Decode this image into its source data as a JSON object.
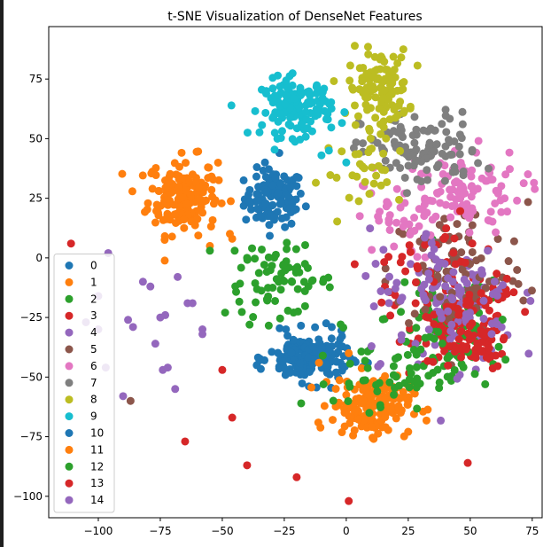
{
  "chart_data": {
    "type": "scatter",
    "title": "t-SNE Visualization of DenseNet Features",
    "xlabel": "",
    "ylabel": "",
    "xlim": [
      -120,
      79
    ],
    "ylim": [
      -109,
      97
    ],
    "xticks": [
      -100,
      -75,
      -50,
      -25,
      0,
      25,
      50,
      75
    ],
    "yticks": [
      75,
      50,
      25,
      0,
      -25,
      -50,
      -75,
      -100
    ],
    "xtick_labels": [
      "−100",
      "−75",
      "−50",
      "−25",
      "0",
      "25",
      "50",
      "75"
    ],
    "ytick_labels": [
      "75",
      "50",
      "25",
      "0",
      "−25",
      "−50",
      "−75",
      "−100"
    ],
    "grid": false,
    "legend_position": "lower-left",
    "series": [
      {
        "name": "0",
        "color": "#1f77b4",
        "clusters": [
          {
            "cx": -29,
            "cy": 25,
            "sx": 6,
            "sy": 6,
            "n": 110
          }
        ],
        "points": [
          [
            -27,
            44
          ],
          [
            -29,
            17
          ]
        ]
      },
      {
        "name": "1",
        "color": "#ff7f0e",
        "clusters": [
          {
            "cx": -66,
            "cy": 26,
            "sx": 7,
            "sy": 8,
            "n": 170
          }
        ],
        "points": [
          [
            -55,
            5
          ],
          [
            -46,
            8
          ]
        ]
      },
      {
        "name": "2",
        "color": "#2ca02c",
        "clusters": [
          {
            "cx": -27,
            "cy": -10,
            "sx": 11,
            "sy": 7,
            "n": 70
          },
          {
            "cx": 40,
            "cy": -25,
            "sx": 12,
            "sy": 10,
            "n": 60
          }
        ],
        "points": [
          [
            -55,
            3
          ],
          [
            -38,
            4
          ],
          [
            -39,
            -28
          ]
        ]
      },
      {
        "name": "3",
        "color": "#d62728",
        "clusters": [
          {
            "cx": 48,
            "cy": -28,
            "sx": 10,
            "sy": 8,
            "n": 90
          }
        ],
        "points": [
          [
            -111,
            6
          ],
          [
            -50,
            -47
          ],
          [
            -46,
            -67
          ],
          [
            -40,
            -87
          ],
          [
            -20,
            -92
          ],
          [
            1,
            -102
          ],
          [
            49,
            -86
          ],
          [
            -65,
            -77
          ]
        ]
      },
      {
        "name": "4",
        "color": "#9467bd",
        "clusters": [
          {
            "cx": 45,
            "cy": -20,
            "sx": 12,
            "sy": 12,
            "n": 70
          }
        ],
        "points": [
          [
            -96,
            2
          ],
          [
            -100,
            -16
          ],
          [
            -105,
            -27
          ],
          [
            -100,
            -30
          ],
          [
            -82,
            -10
          ],
          [
            -79,
            -12
          ],
          [
            -88,
            -26
          ],
          [
            -86,
            -29
          ],
          [
            -75,
            -25
          ],
          [
            -73,
            -24
          ],
          [
            -77,
            -36
          ],
          [
            -74,
            -47
          ],
          [
            -72,
            -46
          ],
          [
            -69,
            -55
          ],
          [
            -90,
            -58
          ],
          [
            -97,
            -46
          ],
          [
            -64,
            -19
          ],
          [
            -62,
            -19
          ],
          [
            -58,
            -30
          ],
          [
            -58,
            -32
          ],
          [
            -68,
            -8
          ]
        ]
      },
      {
        "name": "5",
        "color": "#8c564b",
        "clusters": [
          {
            "cx": 45,
            "cy": -5,
            "sx": 14,
            "sy": 14,
            "n": 90
          }
        ],
        "points": [
          [
            -87,
            -60
          ]
        ]
      },
      {
        "name": "6",
        "color": "#e377c2",
        "clusters": [
          {
            "cx": 45,
            "cy": 28,
            "sx": 13,
            "sy": 9,
            "n": 110
          },
          {
            "cx": 20,
            "cy": 15,
            "sx": 8,
            "sy": 8,
            "n": 30
          }
        ],
        "points": []
      },
      {
        "name": "7",
        "color": "#7f7f7f",
        "clusters": [
          {
            "cx": 30,
            "cy": 45,
            "sx": 12,
            "sy": 8,
            "n": 110
          }
        ],
        "points": []
      },
      {
        "name": "8",
        "color": "#bcbd22",
        "clusters": [
          {
            "cx": 13,
            "cy": 71,
            "sx": 6,
            "sy": 8,
            "n": 120
          },
          {
            "cx": 10,
            "cy": 35,
            "sx": 10,
            "sy": 7,
            "n": 30
          }
        ],
        "points": []
      },
      {
        "name": "9",
        "color": "#17becf",
        "clusters": [
          {
            "cx": -20,
            "cy": 63,
            "sx": 7,
            "sy": 6,
            "n": 140
          }
        ],
        "points": [
          [
            -10,
            43
          ],
          [
            -7,
            45
          ],
          [
            0,
            40
          ]
        ]
      },
      {
        "name": "10",
        "color": "#1f77b4",
        "clusters": [
          {
            "cx": -15,
            "cy": -42,
            "sx": 8,
            "sy": 5,
            "n": 180
          }
        ],
        "points": [
          [
            -35,
            -43
          ]
        ]
      },
      {
        "name": "11",
        "color": "#ff7f0e",
        "clusters": [
          {
            "cx": 10,
            "cy": -62,
            "sx": 8,
            "sy": 6,
            "n": 170
          }
        ],
        "points": [
          [
            -11,
            -44
          ],
          [
            1,
            -40
          ],
          [
            -8,
            -52
          ]
        ]
      },
      {
        "name": "12",
        "color": "#2ca02c",
        "clusters": [
          {
            "cx": 35,
            "cy": -42,
            "sx": 14,
            "sy": 8,
            "n": 60
          },
          {
            "cx": 15,
            "cy": -52,
            "sx": 10,
            "sy": 6,
            "n": 30
          }
        ],
        "points": [
          [
            -45,
            3
          ],
          [
            -40,
            0
          ]
        ]
      },
      {
        "name": "13",
        "color": "#d62728",
        "clusters": [
          {
            "cx": 40,
            "cy": -10,
            "sx": 14,
            "sy": 14,
            "n": 60
          },
          {
            "cx": 50,
            "cy": -35,
            "sx": 8,
            "sy": 6,
            "n": 40
          }
        ],
        "points": []
      },
      {
        "name": "14",
        "color": "#9467bd",
        "clusters": [
          {
            "cx": 40,
            "cy": -15,
            "sx": 16,
            "sy": 14,
            "n": 60
          }
        ],
        "points": []
      }
    ]
  }
}
